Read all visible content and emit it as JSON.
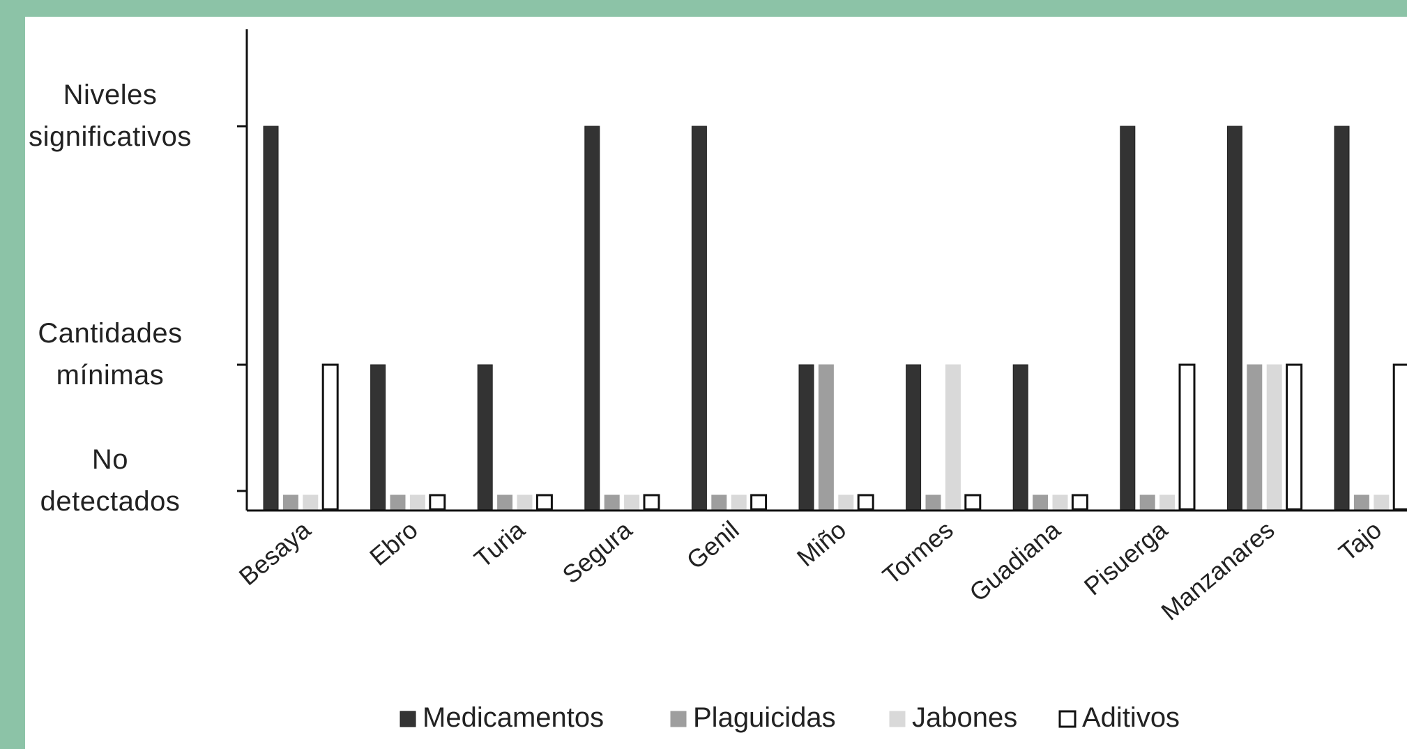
{
  "chart_data": {
    "type": "bar",
    "title": "",
    "xlabel": "",
    "ylabel": "",
    "categories": [
      "Besaya",
      "Ebro",
      "Turia",
      "Segura",
      "Genil",
      "Miño",
      "Tormes",
      "Guadiana",
      "Pisuerga",
      "Manzanares",
      "Tajo"
    ],
    "y_levels": [
      {
        "value": 0,
        "lines": [
          "No",
          "detectados"
        ]
      },
      {
        "value": 1,
        "lines": [
          "Cantidades",
          "mínimas"
        ]
      },
      {
        "value": 2,
        "lines": [
          "Niveles",
          "significativos"
        ]
      }
    ],
    "ylim": [
      0,
      2
    ],
    "series": [
      {
        "name": "Medicamentos",
        "color": "#333333",
        "stroke": "#222222",
        "values": [
          2,
          1,
          1,
          2,
          2,
          1,
          1,
          1,
          2,
          2,
          2
        ]
      },
      {
        "name": "Plaguicidas",
        "color": "#9e9e9e",
        "stroke": "#9e9e9e",
        "values": [
          0,
          0,
          0,
          0,
          0,
          1,
          0,
          0,
          0,
          1,
          0
        ]
      },
      {
        "name": "Jabones",
        "color": "#d9d9d9",
        "stroke": "#d9d9d9",
        "values": [
          0,
          0,
          0,
          0,
          0,
          0,
          1,
          0,
          0,
          1,
          0
        ]
      },
      {
        "name": "Aditivos",
        "color": "#ffffff",
        "stroke": "#111111",
        "values": [
          1,
          0,
          0,
          0,
          0,
          0,
          0,
          0,
          1,
          1,
          1
        ]
      }
    ],
    "legend_position": "bottom",
    "grid": false
  }
}
